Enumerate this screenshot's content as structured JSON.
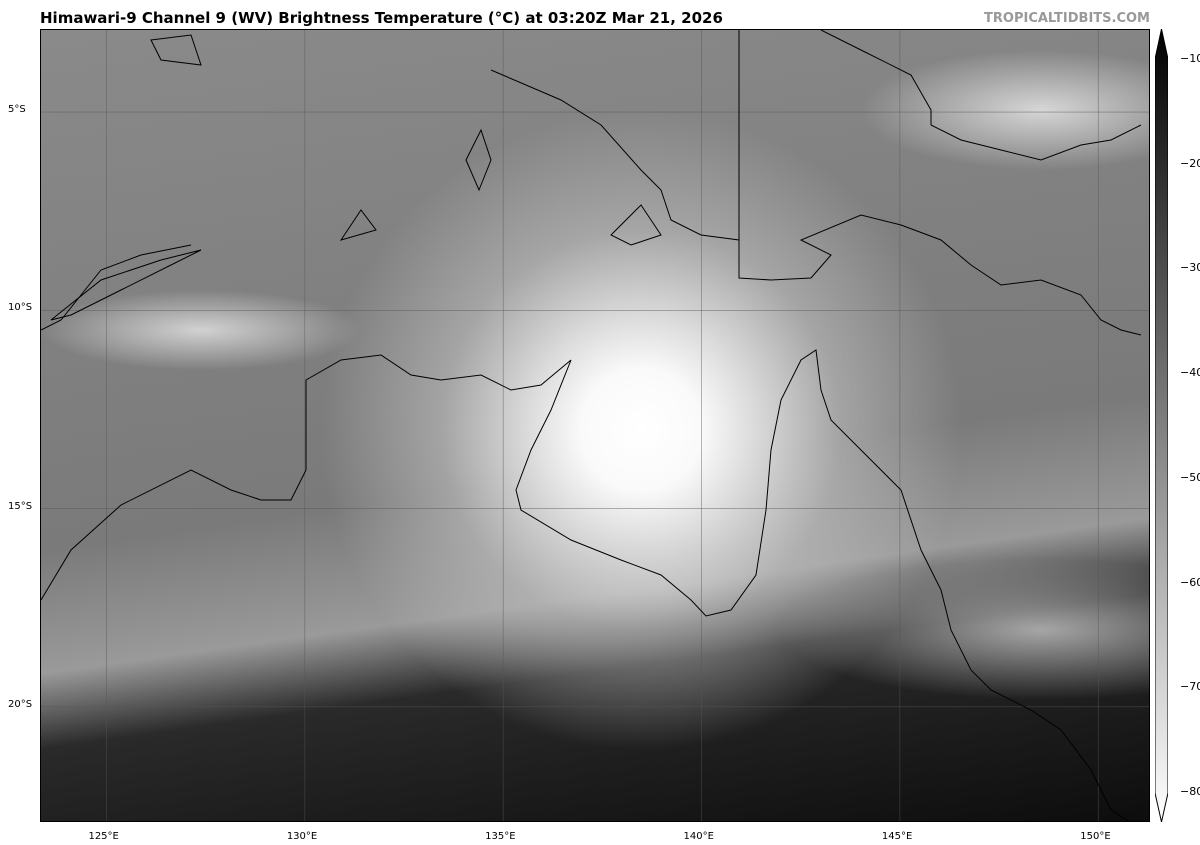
{
  "title": "Himawari-9 Channel 9 (WV) Brightness Temperature (°C) at 03:20Z Mar 21, 2026",
  "brand": "TROPICALTIDBITS.COM",
  "map": {
    "extent": {
      "lon": [
        123.35,
        151.33
      ],
      "lat": [
        -22.93,
        -2.93
      ]
    },
    "lon_ticks": [
      {
        "value": 125,
        "label": "125°E"
      },
      {
        "value": 130,
        "label": "130°E"
      },
      {
        "value": 135,
        "label": "135°E"
      },
      {
        "value": 140,
        "label": "140°E"
      },
      {
        "value": 145,
        "label": "145°E"
      },
      {
        "value": 150,
        "label": "150°E"
      }
    ],
    "lat_ticks": [
      {
        "value": -5,
        "label": "5°S"
      },
      {
        "value": -10,
        "label": "10°S"
      },
      {
        "value": -15,
        "label": "15°S"
      },
      {
        "value": -20,
        "label": "20°S"
      }
    ],
    "colormap": "grayscale, cold = white",
    "gridlines": true
  },
  "colorbar": {
    "range": [
      -80,
      -10
    ],
    "extend": "both",
    "ticks": [
      {
        "value": -10,
        "label": "−10"
      },
      {
        "value": -20,
        "label": "−20"
      },
      {
        "value": -30,
        "label": "−30"
      },
      {
        "value": -40,
        "label": "−40"
      },
      {
        "value": -50,
        "label": "−50"
      },
      {
        "value": -60,
        "label": "−60"
      },
      {
        "value": -70,
        "label": "−70"
      },
      {
        "value": -80,
        "label": "−80"
      }
    ]
  }
}
